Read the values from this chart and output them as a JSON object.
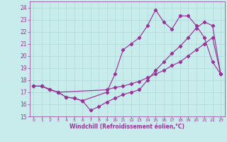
{
  "xlabel": "Windchill (Refroidissement éolien,°C)",
  "bg_color": "#c8ecec",
  "grid_color": "#b0d8d8",
  "line_color": "#993399",
  "xlim": [
    -0.5,
    23.5
  ],
  "ylim": [
    15.0,
    24.5
  ],
  "yticks": [
    15,
    16,
    17,
    18,
    19,
    20,
    21,
    22,
    23,
    24
  ],
  "xticks": [
    0,
    1,
    2,
    3,
    4,
    5,
    6,
    7,
    8,
    9,
    10,
    11,
    12,
    13,
    14,
    15,
    16,
    17,
    18,
    19,
    20,
    21,
    22,
    23
  ],
  "line1_x": [
    0,
    1,
    2,
    3,
    4,
    5,
    6,
    9,
    10,
    11,
    12,
    13,
    14,
    15,
    16,
    17,
    18,
    19,
    20,
    21,
    22,
    23
  ],
  "line1_y": [
    17.5,
    17.5,
    17.2,
    17.0,
    16.6,
    16.5,
    16.3,
    17.0,
    18.5,
    20.5,
    21.0,
    21.5,
    22.5,
    23.8,
    22.8,
    22.2,
    23.3,
    23.3,
    22.5,
    21.5,
    19.5,
    18.5
  ],
  "line2_x": [
    0,
    1,
    3,
    4,
    5,
    6,
    7,
    8,
    9,
    10,
    11,
    12,
    13,
    14,
    15,
    16,
    17,
    18,
    19,
    20,
    21,
    22,
    23
  ],
  "line2_y": [
    17.5,
    17.5,
    17.0,
    16.6,
    16.5,
    16.3,
    15.5,
    15.8,
    16.2,
    16.5,
    16.8,
    17.0,
    17.2,
    18.0,
    18.8,
    19.5,
    20.2,
    20.8,
    21.5,
    22.3,
    22.8,
    22.5,
    18.5
  ],
  "line3_x": [
    0,
    1,
    2,
    3,
    9,
    10,
    11,
    12,
    13,
    14,
    15,
    16,
    17,
    18,
    19,
    20,
    21,
    22,
    23
  ],
  "line3_y": [
    17.5,
    17.5,
    17.2,
    17.0,
    17.2,
    17.4,
    17.5,
    17.7,
    17.9,
    18.2,
    18.5,
    18.8,
    19.2,
    19.5,
    20.0,
    20.5,
    21.0,
    21.5,
    18.5
  ]
}
